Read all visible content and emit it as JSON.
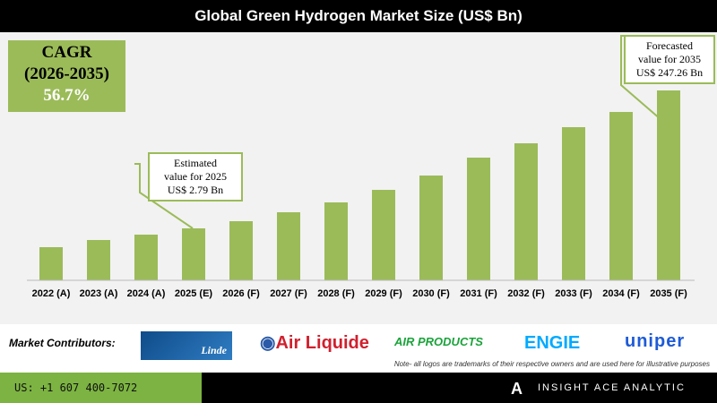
{
  "chart_data": {
    "type": "bar",
    "title": "Global Green Hydrogen Market Size (US$ Bn)",
    "categories": [
      "2022 (A)",
      "2023 (A)",
      "2024 (A)",
      "2025 (E)",
      "2026 (F)",
      "2027 (F)",
      "2028 (F)",
      "2029 (F)",
      "2030 (F)",
      "2031 (F)",
      "2032 (F)",
      "2033 (F)",
      "2034 (F)",
      "2035 (F)"
    ],
    "values": [
      null,
      null,
      null,
      2.79,
      null,
      null,
      null,
      null,
      null,
      null,
      null,
      null,
      null,
      247.26
    ],
    "bar_color": "#9bbb59",
    "grid": false,
    "annotations": {
      "estimated": [
        "Estimated",
        "value for 2025",
        "US$ 2.79 Bn"
      ],
      "forecasted": [
        "Forecasted",
        "value for 2035",
        "US$ 247.26 Bn"
      ]
    },
    "cagr": {
      "label": "CAGR",
      "period": "(2026-2035)",
      "value": "56.7%"
    }
  },
  "contributors": {
    "label": "Market Contributors:",
    "logos": [
      "Linde",
      "Air Liquide",
      "AIR PRODUCTS",
      "ENGIE",
      "uniper"
    ],
    "note": "Note- all logos are trademarks of their respective owners and are used here for illustrative purposes"
  },
  "footer": {
    "phone": "US: +1 607 400-7072",
    "brand": "INSIGHT ACE ANALYTIC"
  }
}
